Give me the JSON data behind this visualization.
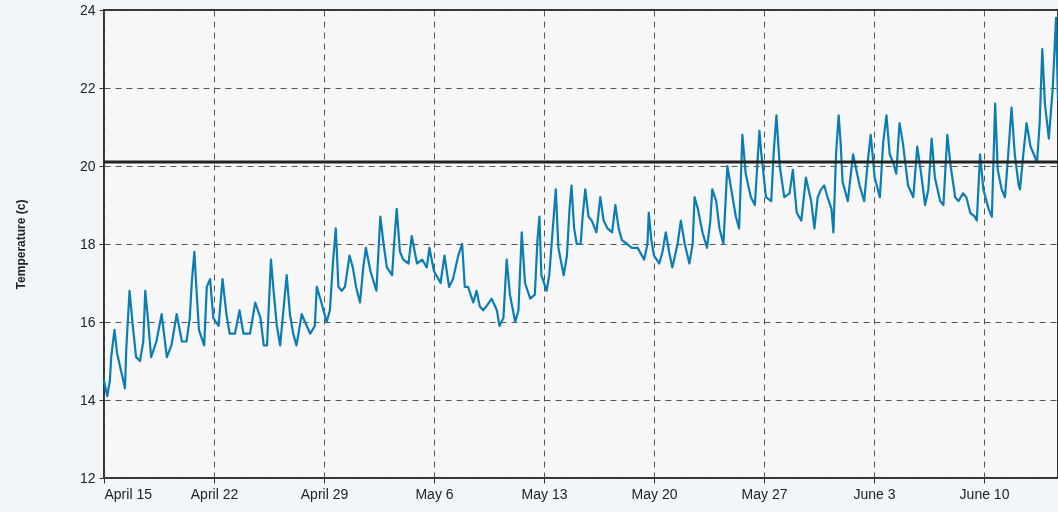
{
  "chart_data": {
    "type": "line",
    "ylabel": "Temperature (c)",
    "color": "#0a7eb4",
    "x": [
      "--04-15T00:00",
      "--04-15T05:00",
      "--04-15T09:00",
      "--04-15T11:00",
      "--04-15T16:00",
      "--04-15T20:00",
      "--04-16T00:00",
      "--04-16T04:00",
      "--04-16T08:00",
      "--04-16T10:00",
      "--04-16T15:00",
      "--04-16T20:00",
      "--04-17T01:00",
      "--04-17T07:00",
      "--04-17T12:00",
      "--04-17T15:00",
      "--04-17T19:00",
      "--04-18T00:00",
      "--04-18T08:00",
      "--04-18T16:00",
      "--04-19T00:00",
      "--04-19T07:00",
      "--04-19T15:00",
      "--04-19T23:00",
      "--04-20T06:00",
      "--04-20T11:00",
      "--04-20T14:00",
      "--04-20T18:00",
      "--04-20T21:00",
      "--04-21T01:00",
      "--04-21T09:00",
      "--04-21T13:00",
      "--04-21T18:00",
      "--04-21T23:00",
      "--04-22T07:00",
      "--04-22T13:00",
      "--04-22T19:00",
      "--04-23T00:00",
      "--04-23T08:00",
      "--04-23T15:00",
      "--04-23T21:00",
      "--04-24T07:00",
      "--04-24T15:00",
      "--04-24T23:00",
      "--04-25T04:00",
      "--04-25T09:00",
      "--04-25T15:00",
      "--04-25T19:00",
      "--04-26T00:00",
      "--04-26T05:00",
      "--04-26T15:00",
      "--04-26T20:00",
      "--04-27T01:00",
      "--04-27T06:00",
      "--04-27T14:00",
      "--04-27T19:00",
      "--04-28T03:00",
      "--04-28T10:00",
      "--04-28T13:00",
      "--04-28T20:00",
      "--04-29T04:00",
      "--04-29T09:00",
      "--04-29T14:00",
      "--04-29T18:00",
      "--04-29T22:00",
      "--04-30T03:00",
      "--04-30T08:00",
      "--04-30T15:00",
      "--04-30T20:00",
      "--05-01T01:00",
      "--05-01T07:00",
      "--05-01T12:00",
      "--05-01T16:00",
      "--05-01T23:00",
      "--05-02T08:00",
      "--05-02T14:00",
      "--05-02T19:00",
      "--05-03T00:00",
      "--05-03T08:00",
      "--05-03T11:00",
      "--05-03T15:00",
      "--05-03T20:00",
      "--05-04T01:00",
      "--05-04T09:00",
      "--05-04T14:00",
      "--05-04T22:00",
      "--05-05T06:00",
      "--05-05T13:00",
      "--05-05T17:00",
      "--05-06T00:00",
      "--05-06T10:00",
      "--05-06T16:00",
      "--05-06T23:00",
      "--05-07T05:00",
      "--05-07T13:00",
      "--05-07T19:00",
      "--05-07T23:00",
      "--05-08T04:00",
      "--05-08T12:00",
      "--05-08T17:00",
      "--05-08T22:00",
      "--05-09T03:00",
      "--05-09T08:00",
      "--05-09T16:00",
      "--05-10T00:00",
      "--05-10T04:00",
      "--05-10T10:00",
      "--05-10T15:00",
      "--05-10T20:00",
      "--05-11T04:00",
      "--05-11T09:00",
      "--05-11T14:00",
      "--05-11T19:00",
      "--05-12T03:00",
      "--05-12T10:00",
      "--05-12T14:00",
      "--05-12T17:00",
      "--05-12T20:00",
      "--05-13T04:00",
      "--05-13T08:00",
      "--05-13T13:00",
      "--05-13T18:00",
      "--05-13T22:00",
      "--05-14T06:00",
      "--05-14T11:00",
      "--05-14T15:00",
      "--05-14T18:00",
      "--05-14T22:00",
      "--05-15T02:00",
      "--05-15T08:00",
      "--05-15T11:00",
      "--05-15T15:00",
      "--05-15T20:00",
      "--05-16T01:00",
      "--05-16T08:00",
      "--05-16T14:00",
      "--05-16T19:00",
      "--05-17T01:00",
      "--05-17T08:00",
      "--05-17T13:00",
      "--05-17T18:00",
      "--05-17T23:00",
      "--05-18T07:00",
      "--05-18T14:00",
      "--05-18T23:00",
      "--05-19T09:00",
      "--05-19T14:00",
      "--05-19T16:00",
      "--05-19T20:00",
      "--05-20T00:00",
      "--05-20T08:00",
      "--05-20T13:00",
      "--05-20T18:00",
      "--05-20T23:00",
      "--05-21T04:00",
      "--05-21T12:00",
      "--05-21T17:00",
      "--05-21T23:00",
      "--05-22T06:00",
      "--05-22T11:00",
      "--05-22T14:00",
      "--05-22T19:00",
      "--05-23T02:00",
      "--05-23T09:00",
      "--05-23T14:00",
      "--05-23T17:00",
      "--05-23T23:00",
      "--05-24T04:00",
      "--05-24T10:00",
      "--05-24T16:00",
      "--05-24T21:00",
      "--05-25T05:00",
      "--05-25T10:00",
      "--05-25T15:00",
      "--05-25T20:00",
      "--05-26T04:00",
      "--05-26T10:00",
      "--05-26T17:00",
      "--05-26T20:00",
      "--05-27T03:00",
      "--05-27T11:00",
      "--05-27T15:00",
      "--05-27T19:00",
      "--05-28T00:00",
      "--05-28T07:00",
      "--05-28T15:00",
      "--05-28T20:00",
      "--05-29T02:00",
      "--05-29T09:00",
      "--05-29T16:00",
      "--05-30T00:00",
      "--05-30T05:00",
      "--05-30T10:00",
      "--05-30T15:00",
      "--05-30T20:00",
      "--05-31T01:00",
      "--05-31T07:00",
      "--05-31T10:00",
      "--05-31T14:00",
      "--05-31T18:00",
      "--05-31T21:00",
      "--06-01T00:00",
      "--06-01T08:00",
      "--06-01T16:00",
      "--06-01T21:00",
      "--06-02T02:00",
      "--06-02T09:00",
      "--06-02T15:00",
      "--06-02T19:00",
      "--06-03T01:00",
      "--06-03T09:00",
      "--06-03T14:00",
      "--06-03T19:00",
      "--06-04T00:00",
      "--06-04T05:00",
      "--06-04T10:00",
      "--06-04T15:00",
      "--06-04T20:00",
      "--06-05T04:00",
      "--06-05T12:00",
      "--06-05T18:00",
      "--06-06T00:00",
      "--06-06T06:00",
      "--06-06T11:00",
      "--06-06T16:00",
      "--06-06T21:00",
      "--06-07T05:00",
      "--06-07T10:00",
      "--06-07T16:00",
      "--06-07T21:00",
      "--06-08T04:00",
      "--06-08T09:00",
      "--06-08T16:00",
      "--06-08T21:00",
      "--06-09T03:00",
      "--06-09T10:00",
      "--06-09T13:00",
      "--06-09T18:00",
      "--06-09T23:00",
      "--06-10T07:00",
      "--06-10T12:00",
      "--06-10T17:00",
      "--06-10T21:00",
      "--06-11T03:00",
      "--06-11T08:00",
      "--06-11T13:00",
      "--06-11T18:00",
      "--06-11T23:00",
      "--06-12T05:00",
      "--06-12T07:00",
      "--06-12T12:00",
      "--06-12T17:00",
      "--06-12T23:00",
      "--06-13T04:00",
      "--06-13T09:00",
      "--06-13T13:00",
      "--06-13T17:00",
      "--06-13T21:00",
      "--06-14T03:00",
      "--06-14T09:00",
      "--06-14T14:00",
      "--06-14T17:00"
    ],
    "values": [
      14.5,
      14.1,
      14.5,
      15.1,
      15.8,
      15.2,
      14.9,
      14.6,
      14.3,
      15.3,
      16.8,
      15.9,
      15.1,
      15.0,
      15.5,
      16.8,
      16.1,
      15.1,
      15.5,
      16.2,
      15.1,
      15.4,
      16.2,
      15.5,
      15.5,
      16.1,
      17.0,
      17.8,
      16.9,
      15.8,
      15.4,
      16.9,
      17.1,
      16.1,
      15.9,
      17.1,
      16.2,
      15.7,
      15.7,
      16.3,
      15.7,
      15.7,
      16.5,
      16.1,
      15.4,
      15.4,
      17.6,
      16.8,
      15.9,
      15.4,
      17.2,
      16.2,
      15.7,
      15.4,
      16.2,
      16.0,
      15.7,
      15.9,
      16.9,
      16.5,
      16.0,
      16.3,
      17.6,
      18.4,
      16.9,
      16.8,
      16.9,
      17.7,
      17.4,
      16.9,
      16.5,
      17.4,
      17.9,
      17.3,
      16.8,
      18.7,
      18.0,
      17.4,
      17.2,
      18.0,
      18.9,
      17.8,
      17.6,
      17.5,
      18.2,
      17.5,
      17.6,
      17.4,
      17.9,
      17.3,
      17.0,
      17.7,
      16.9,
      17.1,
      17.7,
      18.0,
      16.9,
      16.9,
      16.5,
      16.8,
      16.4,
      16.3,
      16.4,
      16.6,
      16.3,
      15.9,
      16.1,
      17.6,
      16.7,
      16.0,
      16.3,
      18.3,
      17.0,
      16.6,
      16.7,
      18.1,
      18.7,
      17.2,
      16.8,
      17.2,
      18.3,
      19.4,
      17.9,
      17.2,
      17.7,
      18.9,
      19.5,
      18.4,
      18.0,
      18.0,
      18.7,
      19.4,
      18.7,
      18.6,
      18.3,
      19.2,
      18.6,
      18.4,
      18.3,
      19.0,
      18.4,
      18.1,
      18.0,
      17.9,
      17.9,
      17.6,
      18.0,
      18.8,
      18.1,
      17.7,
      17.5,
      17.8,
      18.3,
      17.8,
      17.4,
      18.0,
      18.6,
      18.0,
      17.5,
      18.0,
      19.2,
      18.9,
      18.3,
      17.9,
      18.6,
      19.4,
      19.1,
      18.4,
      18.0,
      20.0,
      19.5,
      18.7,
      18.4,
      20.8,
      19.8,
      19.2,
      19.0,
      20.9,
      20.3,
      19.2,
      19.1,
      20.4,
      21.3,
      20.0,
      19.2,
      19.3,
      19.9,
      18.8,
      18.6,
      19.7,
      19.1,
      18.4,
      19.2,
      19.4,
      19.5,
      19.2,
      18.9,
      18.3,
      20.3,
      21.3,
      20.6,
      19.6,
      19.1,
      20.3,
      19.9,
      19.5,
      19.1,
      20.2,
      20.8,
      19.7,
      19.2,
      20.6,
      21.3,
      20.3,
      20.1,
      19.8,
      21.1,
      20.6,
      19.5,
      19.2,
      20.5,
      19.8,
      19.0,
      19.4,
      20.7,
      19.7,
      19.1,
      19.0,
      20.8,
      20.0,
      19.2,
      19.1,
      19.3,
      19.2,
      18.8,
      18.7,
      18.6,
      20.3,
      19.4,
      18.9,
      18.7,
      21.6,
      19.9,
      19.4,
      19.2,
      20.3,
      21.5,
      20.3,
      19.5,
      19.4,
      20.3,
      21.1,
      20.5,
      20.3,
      20.1,
      21.1,
      23.0,
      21.6,
      20.7,
      22.0,
      23.8,
      21.7
    ],
    "xlim": [
      "--04-15T00:00",
      "--06-14T17:00"
    ],
    "xticks": [
      {
        "value": "--04-15",
        "label": "April 15"
      },
      {
        "value": "--04-22",
        "label": "April 22"
      },
      {
        "value": "--04-29",
        "label": "April 29"
      },
      {
        "value": "--05-06",
        "label": "May 6"
      },
      {
        "value": "--05-13",
        "label": "May 13"
      },
      {
        "value": "--05-20",
        "label": "May 20"
      },
      {
        "value": "--05-27",
        "label": "May 27"
      },
      {
        "value": "--06-03",
        "label": "June 3"
      },
      {
        "value": "--06-10",
        "label": "June 10"
      }
    ],
    "ylim": [
      12,
      24
    ],
    "yticks": [
      12,
      14,
      16,
      18,
      20,
      22,
      24
    ],
    "grid": true,
    "ref_lines": [
      {
        "axis": "y",
        "value": 20.1,
        "color": "#222222"
      }
    ]
  }
}
